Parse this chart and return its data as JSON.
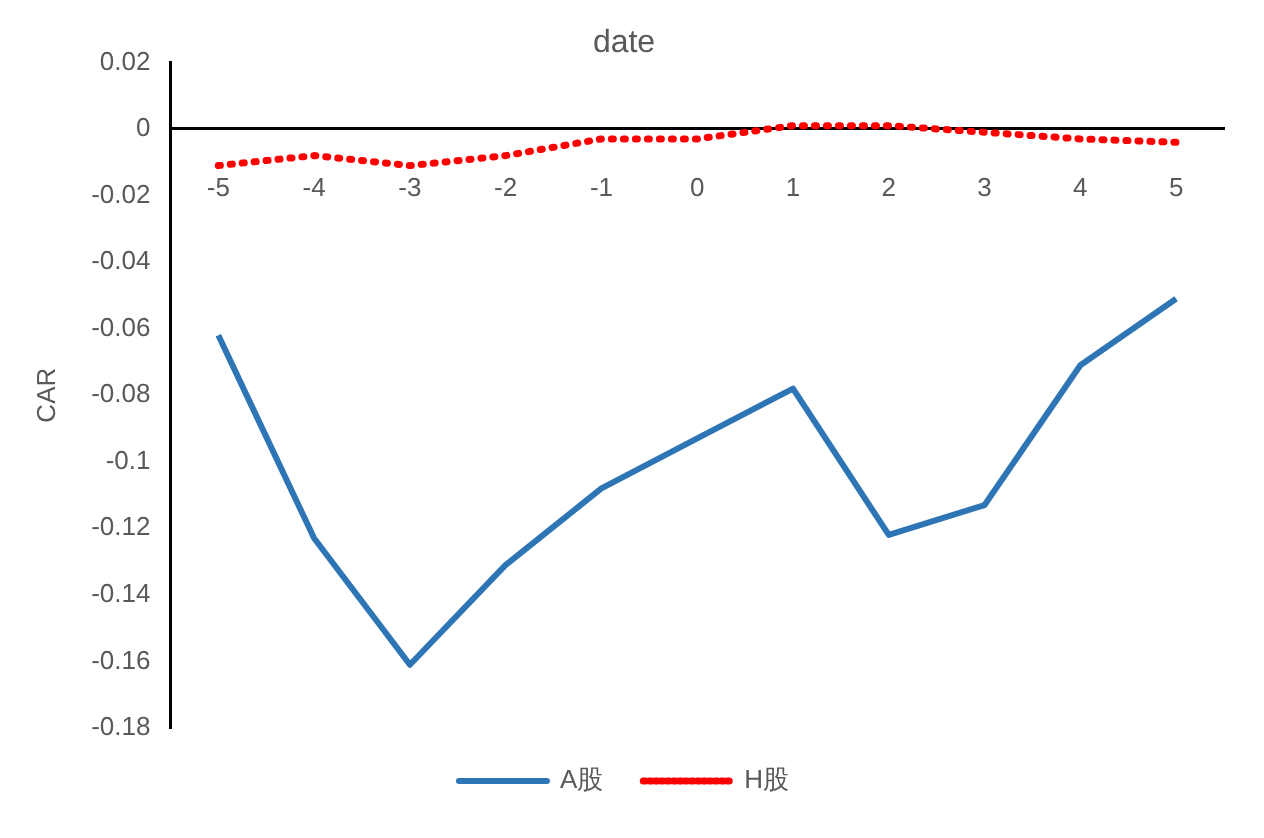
{
  "chart_data": {
    "type": "line",
    "xlabel": "date",
    "ylabel": "CAR",
    "categories": [
      "-5",
      "-4",
      "-3",
      "-2",
      "-1",
      "0",
      "1",
      "2",
      "3",
      "4",
      "5"
    ],
    "series": [
      {
        "name": "A股",
        "color": "#2e75b6",
        "line_style": "solid",
        "values": [
          -0.062,
          -0.123,
          -0.161,
          -0.131,
          -0.108,
          -0.093,
          -0.078,
          -0.122,
          -0.113,
          -0.071,
          -0.051
        ]
      },
      {
        "name": "H股",
        "color": "#ff0000",
        "line_style": "dotted",
        "values": [
          -0.011,
          -0.008,
          -0.011,
          -0.008,
          -0.003,
          -0.003,
          0.001,
          0.001,
          -0.001,
          -0.003,
          -0.004
        ]
      }
    ],
    "ylim": [
      -0.18,
      0.02
    ],
    "yticks": [
      0.02,
      0,
      -0.02,
      -0.04,
      -0.06,
      -0.08,
      -0.1,
      -0.12,
      -0.14,
      -0.16,
      -0.18
    ],
    "grid": false,
    "legend": "bottom",
    "marker": "none"
  }
}
